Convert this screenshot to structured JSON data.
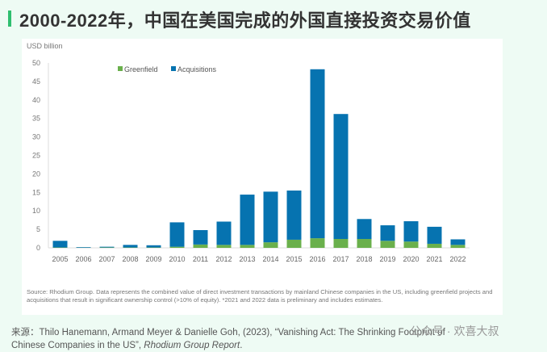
{
  "title": "2000-2022年，中国在美国完成的外国直接投资交易价值",
  "source_note": "Source: Rhodium Group. Data represents the combined value of direct investment transactions by mainland Chinese companies in the US, including greenfield projects and acquisitions that result in significant ownership control (>10% of equity). *2021 and 2022 data is preliminary and includes estimates.",
  "citation": {
    "prefix": "来源：",
    "text": "Thilo Hanemann, Armand Meyer & Danielle Goh, (2023), “Vanishing Act: The Shrinking Footprint of Chinese Companies in the US”, ",
    "report": "Rhodium Group Report",
    "end": "."
  },
  "watermark": "公众号 · 欢喜大叔",
  "chart_data": {
    "type": "bar",
    "stacked": true,
    "ylabel": "USD billion",
    "ylim": [
      0,
      50
    ],
    "yticks": [
      0,
      5,
      10,
      15,
      20,
      25,
      30,
      35,
      40,
      45,
      50
    ],
    "legend_position": "top-center",
    "categories": [
      "2005",
      "2006",
      "2007",
      "2008",
      "2009",
      "2010",
      "2011",
      "2012",
      "2013",
      "2014",
      "2015",
      "2016",
      "2017",
      "2018",
      "2019",
      "2020",
      "2021",
      "2022"
    ],
    "series": [
      {
        "name": "Greenfield",
        "color": "#6ab04c",
        "values": [
          0.1,
          0.05,
          0.1,
          0.1,
          0.1,
          0.3,
          0.9,
          0.8,
          0.8,
          1.5,
          2.2,
          2.6,
          2.4,
          2.4,
          1.9,
          1.7,
          1.1,
          0.8
        ]
      },
      {
        "name": "Acquisitions",
        "color": "#0673b0",
        "values": [
          1.8,
          0.15,
          0.2,
          0.7,
          0.6,
          6.6,
          3.9,
          6.3,
          13.6,
          13.7,
          13.3,
          45.7,
          33.8,
          5.4,
          4.2,
          5.5,
          4.6,
          1.5
        ]
      }
    ]
  }
}
